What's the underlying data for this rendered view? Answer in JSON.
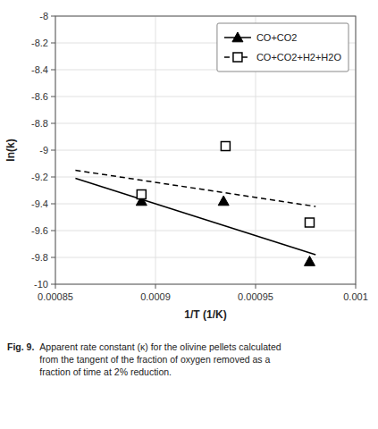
{
  "chart_data": {
    "type": "scatter",
    "xlabel": "1/T (1/K)",
    "ylabel": "ln(k)",
    "xlim": [
      0.00085,
      0.001
    ],
    "ylim": [
      -10,
      -8
    ],
    "xticks": [
      0.00085,
      0.0009,
      0.00095,
      0.001
    ],
    "yticks": [
      -10,
      -9.8,
      -9.6,
      -9.4,
      -9.2,
      -9,
      -8.8,
      -8.6,
      -8.4,
      -8.2,
      -8
    ],
    "grid": true,
    "legend": "upper right",
    "series": [
      {
        "name": "CO+CO2",
        "color": "#000000",
        "marker": "triangle",
        "line_style": "solid",
        "x": [
          0.000893,
          0.000934,
          0.000977
        ],
        "values": [
          -9.38,
          -9.38,
          -9.83
        ],
        "line_x": [
          0.00086,
          0.00098
        ],
        "line_values": [
          -9.21,
          -9.78
        ]
      },
      {
        "name": "CO+CO2+H2+H2O",
        "color": "#000000",
        "marker": "open-square",
        "line_style": "dashed",
        "x": [
          0.000893,
          0.000935,
          0.000977
        ],
        "values": [
          -9.33,
          -8.97,
          -9.54
        ],
        "line_x": [
          0.00086,
          0.00098
        ],
        "line_values": [
          -9.15,
          -9.42
        ]
      }
    ],
    "annotations": [
      "Fig. 9.",
      "Apparent rate constant (κ) for the olivine pellets calculated\nfrom the tangent of the fraction of oxygen removed as a\nfraction of time at 2% reduction."
    ]
  }
}
